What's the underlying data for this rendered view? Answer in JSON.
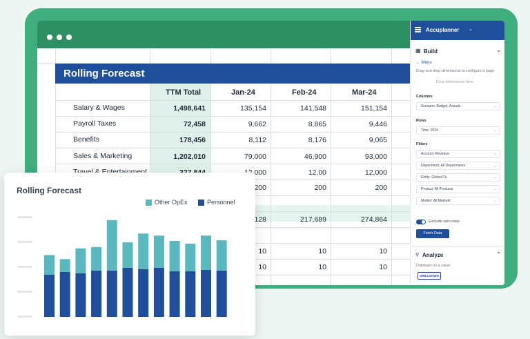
{
  "sheet": {
    "title": "Rolling Forecast",
    "columns": [
      "TTM Total",
      "Jan-24",
      "Feb-24",
      "Mar-24"
    ],
    "rows": [
      {
        "label": "Salary & Wages",
        "ttm": "1,498,641",
        "jan": "135,154",
        "feb": "141,548",
        "mar": "151,154"
      },
      {
        "label": "Payroll Taxes",
        "ttm": "72,458",
        "jan": "9,662",
        "feb": "8,865",
        "mar": "9,446"
      },
      {
        "label": "Benefits",
        "ttm": "178,456",
        "jan": "8,112",
        "feb": "8,176",
        "mar": "9,065"
      },
      {
        "label": "Sales & Marketing",
        "ttm": "1,202,010",
        "jan": "79,000",
        "feb": "46,900",
        "mar": "93,000"
      },
      {
        "label": "Travel & Entertainment",
        "ttm": "327,844",
        "jan": "12,000",
        "feb": "12,00",
        "mar": "12,000"
      }
    ],
    "partial": {
      "r6": [
        "200",
        "200",
        "200"
      ],
      "r8": [
        "128",
        "217,689",
        "274,864"
      ],
      "r10": [
        "10",
        "10",
        "10"
      ],
      "r11": [
        "10",
        "10",
        "10"
      ]
    }
  },
  "panel": {
    "brand": "Accuplanner",
    "build": "Build",
    "menu": "← Menu",
    "hint": "Drag and drop dimensions to configure a page",
    "drop": "Drop dimensions here",
    "columns_label": "Columns",
    "scenario": "Scenario: Budget, Actuals",
    "rows_label": "Rows",
    "time": "Time: 2024",
    "filters_label": "Filters",
    "filters": [
      "Account: Revenue",
      "Department: All Departments",
      "Entity: Global Co",
      "Product: All Products",
      "Market: All Markets"
    ],
    "exclude": "Exclude zero rows",
    "fetch": "Fetch Data",
    "analyze": "Analyze",
    "drill_hint": "Drilldown on a value",
    "drill_btn": "DRILLDOWN"
  },
  "chart_data": {
    "type": "bar",
    "title": "Rolling Forecast",
    "legend": [
      "Other OpEx",
      "Personnel"
    ],
    "legend_position": "top-right",
    "colors": {
      "Other OpEx": "#5ab9bf",
      "Personnel": "#1f4f9b"
    },
    "categories": [
      "",
      "",
      "",
      "",
      "",
      "",
      "",
      "",
      "",
      "",
      "",
      ""
    ],
    "series": [
      {
        "name": "Personnel",
        "values": [
          63,
          67,
          65,
          69,
          69,
          73,
          71,
          73,
          68,
          68,
          70,
          69
        ]
      },
      {
        "name": "Other OpEx",
        "values": [
          29,
          19,
          37,
          35,
          75,
          38,
          53,
          48,
          45,
          41,
          51,
          45
        ]
      }
    ],
    "ylim": [
      0,
      150
    ]
  }
}
